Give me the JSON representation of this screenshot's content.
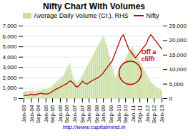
{
  "chart_data": {
    "type": "bar",
    "title": "Nifty Chart With Volumes",
    "subtitle": "http://www.capitalmind.in",
    "annotation": "Off a\ncliff!",
    "categories": [
      "Jan-03",
      null,
      null,
      null,
      null,
      null,
      null,
      "Jan-04",
      null,
      null,
      null,
      null,
      null,
      "Sep-04",
      null,
      null,
      null,
      null,
      null,
      null,
      "Jan-05",
      null,
      null,
      null,
      null,
      null,
      "Sep-05",
      null,
      null,
      null,
      null,
      null,
      null,
      "Jan-06",
      null,
      null,
      null,
      null,
      null,
      "Sep-06",
      null,
      null,
      null,
      null,
      null,
      null,
      "Jan-07",
      null,
      null,
      null,
      null,
      null,
      null,
      "Sep-07",
      null,
      null,
      null,
      null,
      null,
      "Jan-08",
      null,
      null,
      null,
      null,
      null,
      null,
      "Sep-08",
      null,
      null,
      null,
      null,
      null,
      "Jan-09",
      null,
      null,
      null,
      null,
      null,
      null,
      "Sep-09",
      null,
      null,
      null,
      null,
      null,
      null,
      "Jan-10",
      null,
      null,
      null,
      null,
      null,
      "Sep-10",
      null,
      null,
      null,
      null,
      null,
      null,
      "Jan-11",
      null,
      null,
      null,
      null,
      null,
      "Sep-11",
      null,
      null,
      null,
      null,
      null,
      null,
      "Jan-12",
      null,
      null,
      null,
      null,
      null,
      "Sep-12",
      null,
      null,
      null,
      null,
      null,
      null,
      "Jan-13"
    ],
    "series": [
      {
        "name": "Average Daily Volume (Cr.), RHS",
        "type": "bar",
        "color": "#c8dfa0",
        "values": [
          600,
          650,
          700,
          680,
          650,
          700,
          750,
          720,
          700,
          680,
          650,
          700,
          750,
          800,
          750,
          720,
          800,
          850,
          900,
          880,
          850,
          900,
          950,
          1000,
          1050,
          1100,
          1200,
          1300,
          1400,
          1500,
          1600,
          1700,
          1800,
          1900,
          2000,
          2100,
          2200,
          2400,
          2600,
          2800,
          3000,
          3200,
          3400,
          2800,
          2400,
          2000,
          1800,
          1600,
          1400,
          1500,
          1600,
          1800,
          2000,
          2200,
          2400,
          2600,
          2800,
          3000,
          3200,
          3400,
          3600,
          3800,
          4000,
          4200,
          4400,
          4600,
          4800,
          5000,
          5200,
          5400,
          5600,
          5800,
          6000,
          5800,
          5500,
          5200,
          4800,
          4400,
          4000,
          3600,
          3200,
          2800,
          2400,
          2000,
          2200,
          2400,
          2600,
          2800,
          3000,
          3200,
          3400,
          3600,
          3800,
          4000,
          4200,
          4400,
          4600,
          4800,
          5000,
          4800,
          4600,
          4400,
          4200,
          4000,
          3800,
          3600,
          3400,
          3200,
          3000,
          2800,
          2600,
          2400,
          2200,
          2000,
          1800,
          1600,
          1500,
          1400,
          1300,
          1200,
          1100,
          1000,
          950,
          900,
          850,
          800
        ]
      },
      {
        "name": "Nifty",
        "type": "line",
        "color": "#c00000",
        "axis": "y2",
        "values": [
          1000,
          1050,
          1100,
          1150,
          1200,
          1250,
          1500,
          1450,
          1400,
          1350,
          1300,
          1400,
          1500,
          1600,
          1700,
          1800,
          1750,
          1700,
          1650,
          1600,
          1550,
          1600,
          1700,
          1800,
          2000,
          2200,
          2500,
          2800,
          3000,
          3200,
          3400,
          3600,
          3800,
          4000,
          4200,
          4400,
          4600,
          4800,
          5000,
          5200,
          5500,
          5800,
          6100,
          5900,
          5500,
          5100,
          4700,
          4200,
          4000,
          4200,
          4500,
          5000,
          5500,
          6000,
          5700,
          5400,
          5200,
          5000,
          5200,
          5500,
          5800,
          6000,
          6200,
          6400,
          6600,
          6800,
          7000,
          7200,
          7500,
          7800,
          8000,
          8500,
          9000,
          9500,
          10000,
          10500,
          11000,
          11500,
          12000,
          12500,
          13000,
          14000,
          15000,
          16000,
          17000,
          18000,
          19000,
          20000,
          21000,
          21500,
          22000,
          21000,
          20000,
          19000,
          18000,
          17000,
          16500,
          16000,
          15500,
          15000,
          14500,
          14000,
          14500,
          15000,
          15500,
          16000,
          16500,
          17000,
          17500,
          18000,
          18500,
          19000,
          20000,
          21000,
          21500,
          22000,
          21500,
          21000,
          20500,
          20000,
          19500,
          19000,
          18500,
          18000,
          17500,
          17000
        ]
      }
    ],
    "ylim": [
      0,
      7000
    ],
    "yticks": [
      0,
      {
        "value": 1000,
        "label": "1,000"
      },
      {
        "value": 2000,
        "label": "2,000"
      },
      {
        "value": 3000,
        "label": "3,000"
      },
      {
        "value": 4000,
        "label": "4,000"
      },
      {
        "value": 5000,
        "label": "5,000"
      },
      {
        "value": 6000,
        "label": "6,000"
      },
      {
        "value": 7000,
        "label": "7,000"
      }
    ],
    "y2lim": [
      0,
      25000
    ],
    "y2ticks": [
      0,
      {
        "value": 5000,
        "label": "5,000"
      },
      {
        "value": 10000,
        "label": "10,000"
      },
      {
        "value": 15000,
        "label": "15,000"
      },
      {
        "value": 20000,
        "label": "20,000"
      },
      {
        "value": 25000,
        "label": "25,000"
      }
    ],
    "grid": true,
    "legend": "upper left"
  }
}
